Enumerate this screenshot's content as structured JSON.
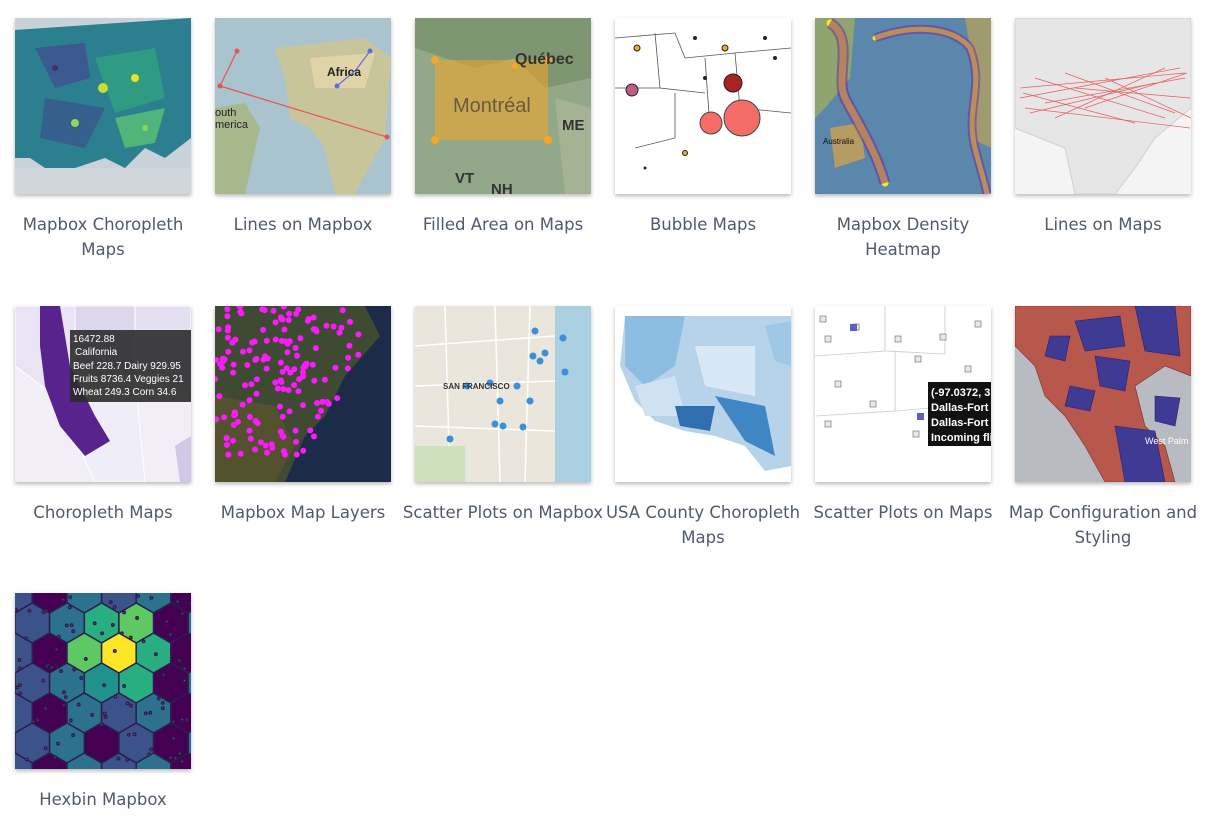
{
  "gallery": {
    "items": [
      {
        "label": "Mapbox Choropleth Maps"
      },
      {
        "label": "Lines on Mapbox",
        "thumb_text": [
          "Africa",
          "outh",
          "merica"
        ]
      },
      {
        "label": "Filled Area on Maps",
        "thumb_text": [
          "Québec",
          "Montréal",
          "ME",
          "VT",
          "NH"
        ]
      },
      {
        "label": "Bubble Maps"
      },
      {
        "label": "Mapbox Density Heatmap",
        "thumb_text": [
          "Australia"
        ]
      },
      {
        "label": "Lines on Maps"
      },
      {
        "label": "Choropleth Maps",
        "thumb_text": [
          "16472.88",
          "California",
          "Beef 228.7 Dairy 929.95",
          "Fruits 8736.4 Veggies 21",
          "Wheat 249.3 Corn 34.6"
        ]
      },
      {
        "label": "Mapbox Map Layers"
      },
      {
        "label": "Scatter Plots on Mapbox",
        "thumb_text": [
          "SAN FRANCISCO"
        ]
      },
      {
        "label": "USA County Choropleth Maps"
      },
      {
        "label": "Scatter Plots on Maps",
        "thumb_text": [
          "(-97.0372, 3",
          "Dallas-Fort",
          "Dallas-Fort",
          "Incoming fli"
        ]
      },
      {
        "label": "Map Configuration and Styling",
        "thumb_text": [
          "West Palm"
        ]
      },
      {
        "label": "Hexbin Mapbox"
      }
    ]
  },
  "colors": {
    "label_text": "#505a6e",
    "viridis_dark": "#440154",
    "viridis_teal": "#21918c",
    "viridis_yellow": "#fde725",
    "magenta": "#ff00ff",
    "red_line": "#e8554e",
    "orange_fill": "#f5a623"
  }
}
